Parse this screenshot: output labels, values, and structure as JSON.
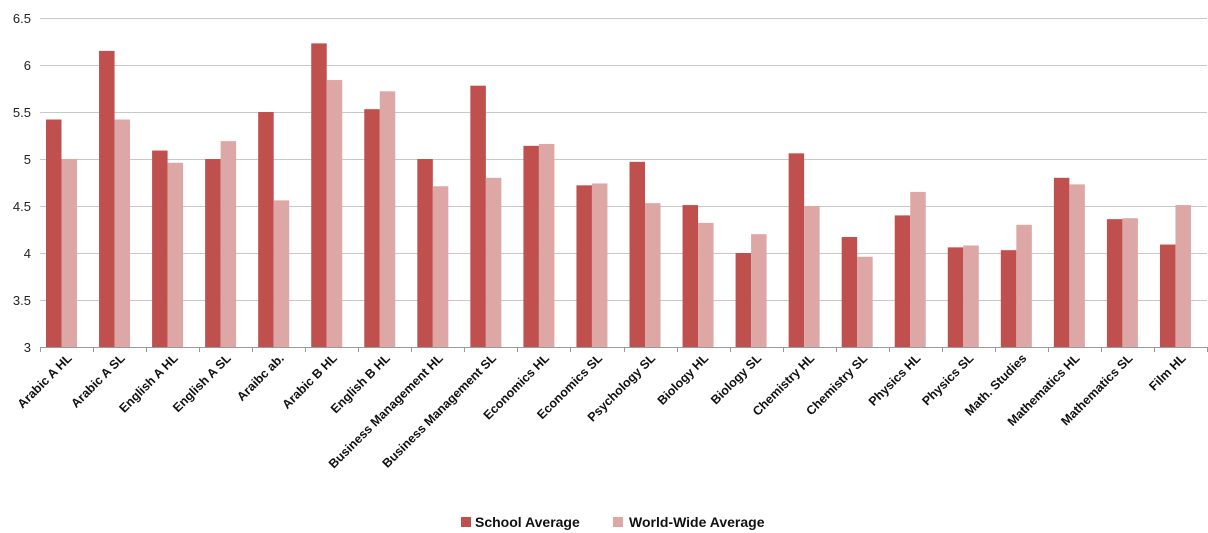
{
  "chart_data": {
    "type": "bar",
    "title": "",
    "xlabel": "",
    "ylabel": "",
    "ylim": [
      3,
      6.5
    ],
    "yticks": [
      "3",
      "3.5",
      "4",
      "4.5",
      "5",
      "5.5",
      "6",
      "6.5"
    ],
    "grid": true,
    "legend": "bottom",
    "categories": [
      "Arabic A HL",
      "Arabic A SL",
      "English A HL",
      "English A SL",
      "Araibc ab.",
      "Arabic B HL",
      "English B HL",
      "Business Management HL",
      "Business Management SL",
      "Economics HL",
      "Economics SL",
      "Psychology SL",
      "Biology HL",
      "Biology SL",
      "Chemistry HL",
      "Chemistry SL",
      "Physics HL",
      "Physics SL",
      "Math. Studies",
      "Mathematics HL",
      "Mathematics SL",
      "Film HL"
    ],
    "series": [
      {
        "name": "School Average",
        "color": "#c0504d",
        "values": [
          5.42,
          6.15,
          5.09,
          5.0,
          5.5,
          6.23,
          5.53,
          5.0,
          5.78,
          5.14,
          4.72,
          4.97,
          4.51,
          4.0,
          5.06,
          4.17,
          4.4,
          4.06,
          4.03,
          4.8,
          4.36,
          4.09
        ]
      },
      {
        "name": "World-Wide Average",
        "color": "#dda7a6",
        "values": [
          5.0,
          5.42,
          4.96,
          5.19,
          4.56,
          5.84,
          5.72,
          4.71,
          4.8,
          5.16,
          4.74,
          4.53,
          4.32,
          4.2,
          4.5,
          3.96,
          4.65,
          4.08,
          4.3,
          4.73,
          4.37,
          4.51
        ]
      }
    ]
  }
}
